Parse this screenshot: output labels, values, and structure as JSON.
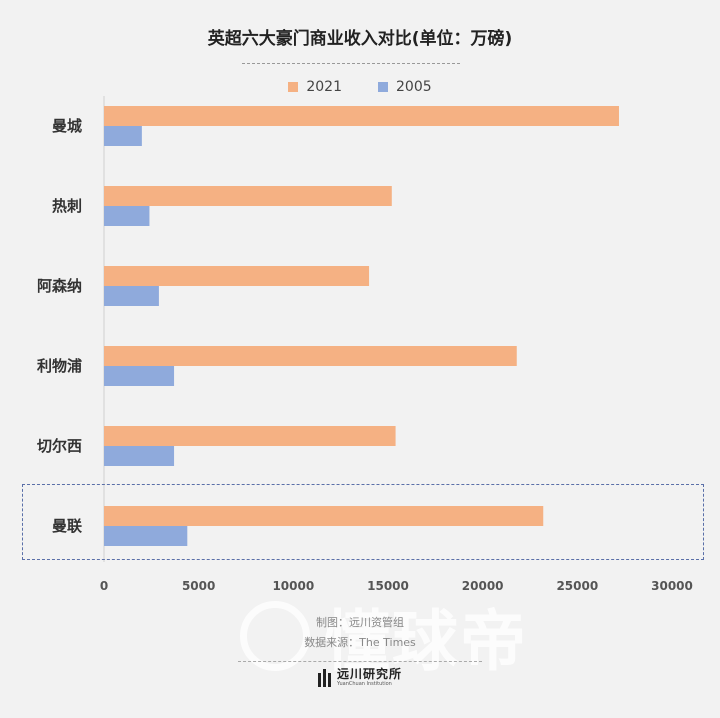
{
  "title": "英超六大豪门商业收入对比(单位：万磅)",
  "legend": [
    {
      "label": "2021",
      "color": "#f5b183"
    },
    {
      "label": "2005",
      "color": "#8faadc"
    }
  ],
  "chart_data": {
    "type": "bar",
    "orientation": "horizontal",
    "categories": [
      "曼城",
      "热刺",
      "阿森纳",
      "利物浦",
      "切尔西",
      "曼联"
    ],
    "series": [
      {
        "name": "2021",
        "values": [
          27200,
          15200,
          14000,
          21800,
          15400,
          23200
        ]
      },
      {
        "name": "2005",
        "values": [
          2000,
          2400,
          2900,
          3700,
          3700,
          4400
        ]
      }
    ],
    "xlim": [
      0,
      30000
    ],
    "xticks": [
      0,
      5000,
      10000,
      15000,
      20000,
      25000,
      30000
    ],
    "highlight": "曼联",
    "legend_position": "top"
  },
  "credits": {
    "maker": "制图：远川资管组",
    "source": "数据来源：The Times"
  },
  "brand": {
    "name": "远川研究所",
    "sub": "YuanChuan Institution"
  },
  "watermark": "懂球帝"
}
